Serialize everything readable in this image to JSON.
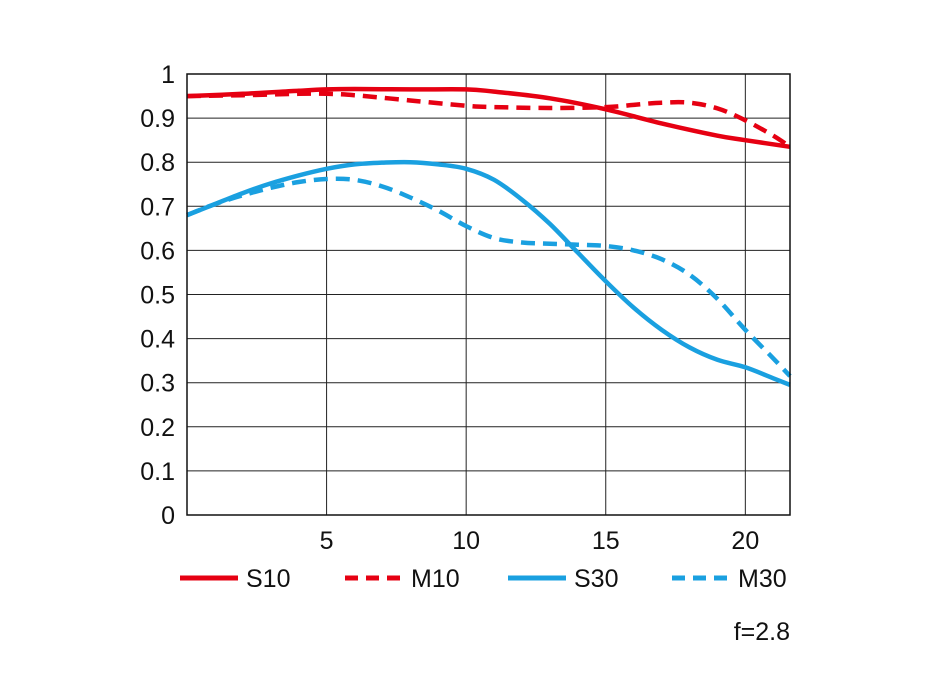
{
  "chart_data": {
    "type": "line",
    "xlim": [
      0,
      21.6
    ],
    "ylim": [
      0,
      1
    ],
    "x_ticks": [
      5,
      10,
      15,
      20
    ],
    "y_ticks": [
      0,
      0.1,
      0.2,
      0.3,
      0.4,
      0.5,
      0.6,
      0.7,
      0.8,
      0.9,
      1
    ],
    "y_tick_labels": [
      "0",
      "0.1",
      "0.2",
      "0.3",
      "0.4",
      "0.5",
      "0.6",
      "0.7",
      "0.8",
      "0.9",
      "1"
    ],
    "x_tick_labels": [
      "5",
      "10",
      "15",
      "20"
    ],
    "grid": true,
    "legend_position": "bottom",
    "annotation": "f=2.8",
    "series": [
      {
        "name": "S10",
        "color": "#e60012",
        "dash": "solid",
        "x": [
          0,
          2,
          4,
          5,
          6,
          8,
          10,
          11,
          13,
          15,
          17,
          19,
          20,
          21.6
        ],
        "y": [
          0.95,
          0.955,
          0.962,
          0.965,
          0.966,
          0.965,
          0.965,
          0.96,
          0.945,
          0.92,
          0.888,
          0.86,
          0.85,
          0.835
        ]
      },
      {
        "name": "M10",
        "color": "#e60012",
        "dash": "dashed",
        "x": [
          0,
          2,
          4,
          5,
          6,
          8,
          10,
          11,
          13,
          15,
          16,
          17,
          18,
          19,
          20,
          21,
          21.6
        ],
        "y": [
          0.95,
          0.952,
          0.955,
          0.955,
          0.952,
          0.94,
          0.928,
          0.925,
          0.923,
          0.925,
          0.93,
          0.935,
          0.935,
          0.922,
          0.895,
          0.86,
          0.835
        ]
      },
      {
        "name": "S30",
        "color": "#1aa0e0",
        "dash": "solid",
        "x": [
          0,
          1,
          2,
          3,
          4,
          5,
          6,
          7,
          8,
          9,
          10,
          11,
          12,
          13,
          14,
          15,
          16,
          17,
          18,
          19,
          20,
          21,
          21.6
        ],
        "y": [
          0.68,
          0.705,
          0.73,
          0.752,
          0.77,
          0.785,
          0.795,
          0.799,
          0.8,
          0.795,
          0.785,
          0.76,
          0.715,
          0.66,
          0.595,
          0.53,
          0.47,
          0.42,
          0.38,
          0.352,
          0.335,
          0.31,
          0.295
        ]
      },
      {
        "name": "M30",
        "color": "#1aa0e0",
        "dash": "dashed",
        "x": [
          0,
          1,
          2,
          3,
          4,
          5,
          6,
          7,
          8,
          9,
          10,
          11,
          12,
          13,
          14,
          15,
          16,
          17,
          18,
          19,
          20,
          21,
          21.6
        ],
        "y": [
          0.68,
          0.705,
          0.725,
          0.742,
          0.755,
          0.762,
          0.76,
          0.745,
          0.72,
          0.69,
          0.655,
          0.628,
          0.618,
          0.615,
          0.613,
          0.61,
          0.6,
          0.58,
          0.545,
          0.49,
          0.42,
          0.355,
          0.315
        ]
      }
    ]
  }
}
